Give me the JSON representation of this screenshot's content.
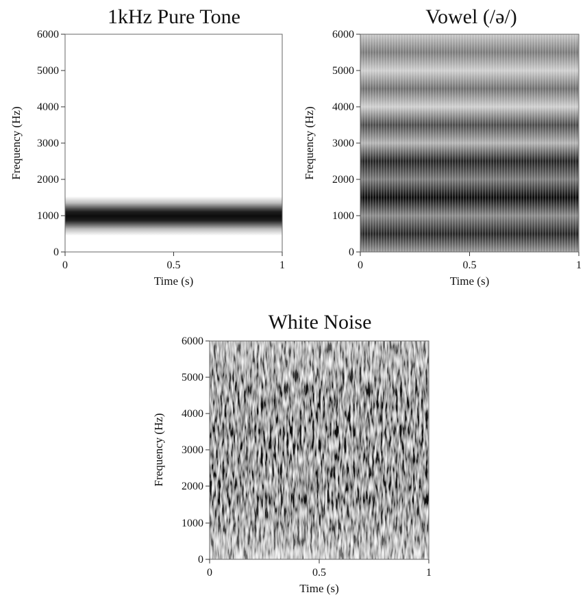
{
  "chart_data": [
    {
      "type": "heatmap",
      "subtype": "spectrogram",
      "title": "1kHz Pure Tone",
      "xlabel": "Time (s)",
      "ylabel": "Frequency (Hz)",
      "xlim": [
        0,
        1
      ],
      "ylim": [
        0,
        6000
      ],
      "xticks": [
        "0",
        "0.5",
        "1"
      ],
      "yticks": [
        "0",
        "1000",
        "2000",
        "3000",
        "4000",
        "5000",
        "6000"
      ],
      "colormap": "grayscale (white = low energy, black = high energy)",
      "energy_bands_hz": [
        {
          "center": 1000,
          "halfwidth": 480,
          "intensity": 1.0
        }
      ],
      "texture": "smooth"
    },
    {
      "type": "heatmap",
      "subtype": "spectrogram",
      "title": "Vowel (/ə/)",
      "xlabel": "Time (s)",
      "ylabel": "Frequency (Hz)",
      "xlim": [
        0,
        1
      ],
      "ylim": [
        0,
        6000
      ],
      "xticks": [
        "0",
        "0.5",
        "1"
      ],
      "yticks": [
        "0",
        "1000",
        "2000",
        "3000",
        "4000",
        "5000",
        "6000"
      ],
      "colormap": "grayscale (white = low energy, black = high energy)",
      "energy_bands_hz": [
        {
          "center": 500,
          "halfwidth": 300,
          "intensity": 0.85
        },
        {
          "center": 1500,
          "halfwidth": 300,
          "intensity": 1.0
        },
        {
          "center": 2500,
          "halfwidth": 300,
          "intensity": 0.85
        },
        {
          "center": 3500,
          "halfwidth": 300,
          "intensity": 0.7
        },
        {
          "center": 4500,
          "halfwidth": 300,
          "intensity": 0.6
        },
        {
          "center": 5500,
          "halfwidth": 300,
          "intensity": 0.55
        }
      ],
      "texture": "vertical striations (glottal pulses)"
    },
    {
      "type": "heatmap",
      "subtype": "spectrogram",
      "title": "White Noise",
      "xlabel": "Time (s)",
      "ylabel": "Frequency (Hz)",
      "xlim": [
        0,
        1
      ],
      "ylim": [
        0,
        6000
      ],
      "xticks": [
        "0",
        "0.5",
        "1"
      ],
      "yticks": [
        "0",
        "1000",
        "2000",
        "3000",
        "4000",
        "5000",
        "6000"
      ],
      "colormap": "grayscale (white = low energy, black = high energy)",
      "energy_bands_hz": [
        {
          "center": 3000,
          "halfwidth": 3000,
          "intensity": 0.75
        }
      ],
      "texture": "random speckle across all frequencies"
    }
  ]
}
